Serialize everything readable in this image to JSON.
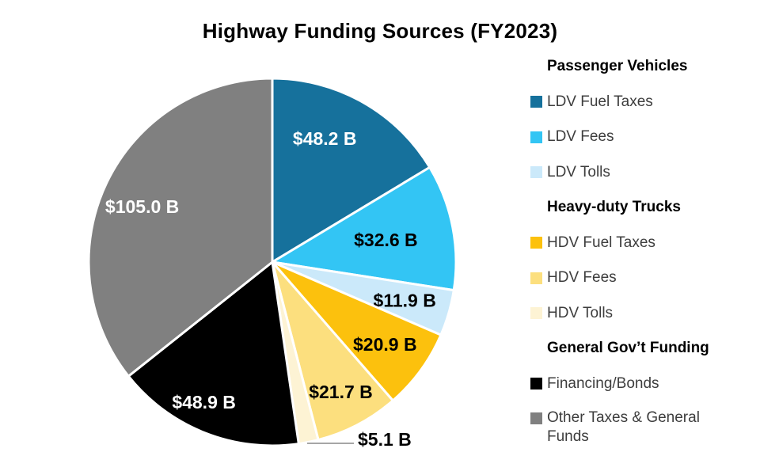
{
  "title": "Highway Funding Sources (FY2023)",
  "chart_data": {
    "type": "pie",
    "title": "Highway Funding Sources (FY2023)",
    "unit": "billions USD",
    "start_angle_deg": 0,
    "direction": "clockwise",
    "total": 294.3,
    "slices": [
      {
        "label": "LDV Fuel Taxes",
        "group": "Passenger Vehicles",
        "value": 48.2,
        "display": "$48.2 B",
        "color": "#16719c",
        "text_color": "#ffffff"
      },
      {
        "label": "LDV Fees",
        "group": "Passenger Vehicles",
        "value": 32.6,
        "display": "$32.6 B",
        "color": "#33c5f4",
        "text_color": "#000000"
      },
      {
        "label": "LDV Tolls",
        "group": "Passenger Vehicles",
        "value": 11.9,
        "display": "$11.9 B",
        "color": "#cbe9fa",
        "text_color": "#000000"
      },
      {
        "label": "HDV Fuel Taxes",
        "group": "Heavy-duty Trucks",
        "value": 20.9,
        "display": "$20.9 B",
        "color": "#fcc10d",
        "text_color": "#000000"
      },
      {
        "label": "HDV Fees",
        "group": "Heavy-duty Trucks",
        "value": 21.7,
        "display": "$21.7 B",
        "color": "#fcdf7e",
        "text_color": "#000000"
      },
      {
        "label": "HDV Tolls",
        "group": "Heavy-duty Trucks",
        "value": 5.1,
        "display": "$5.1 B",
        "color": "#fdf3d4",
        "text_color": "#000000",
        "callout": true
      },
      {
        "label": "Financing/Bonds",
        "group": "General Gov’t Funding",
        "value": 48.9,
        "display": "$48.9 B",
        "color": "#000000",
        "text_color": "#ffffff"
      },
      {
        "label": "Other Taxes & General Funds",
        "group": "General Gov’t Funding",
        "value": 105.0,
        "display": "$105.0 B",
        "color": "#808080",
        "text_color": "#ffffff"
      }
    ],
    "callout_line_color": "#a6a6a6",
    "slice_border_color": "#ffffff"
  },
  "legend": {
    "groups": [
      {
        "header": "Passenger Vehicles",
        "items": [
          {
            "label": "LDV Fuel Taxes",
            "color": "#16719c"
          },
          {
            "label": "LDV Fees",
            "color": "#33c5f4"
          },
          {
            "label": "LDV Tolls",
            "color": "#cbe9fa"
          }
        ]
      },
      {
        "header": "Heavy-duty Trucks",
        "items": [
          {
            "label": "HDV Fuel Taxes",
            "color": "#fcc10d"
          },
          {
            "label": "HDV Fees",
            "color": "#fcdf7e"
          },
          {
            "label": "HDV Tolls",
            "color": "#fdf3d4"
          }
        ]
      },
      {
        "header": "General Gov’t Funding",
        "items": [
          {
            "label": "Financing/Bonds",
            "color": "#000000"
          },
          {
            "label": "Other Taxes & General Funds",
            "color": "#808080"
          }
        ]
      }
    ]
  }
}
